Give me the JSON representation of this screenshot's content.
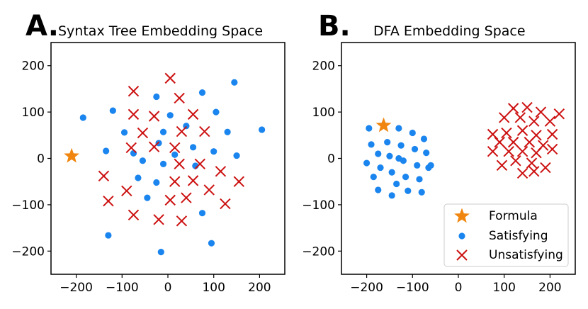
{
  "colors": {
    "formula": "#f0860f",
    "satisfying": "#1a85ee",
    "unsatisfying": "#cc1111",
    "axis": "#000000"
  },
  "chart_data": [
    {
      "type": "scatter",
      "panel_label": "A.",
      "title": "Syntax Tree Embedding Space",
      "xlim": [
        -255,
        255
      ],
      "ylim": [
        -250,
        250
      ],
      "xticks": [
        -200,
        -100,
        0,
        100,
        200
      ],
      "yticks": [
        -200,
        -100,
        0,
        100,
        200
      ],
      "grid": false,
      "legend": null,
      "series": [
        {
          "marker": "star",
          "points": [
            [
              -210,
              5
            ]
          ]
        },
        {
          "marker": "circle",
          "points": [
            [
              -185,
              88
            ],
            [
              -120,
              103
            ],
            [
              -135,
              16
            ],
            [
              -130,
              -166
            ],
            [
              -95,
              56
            ],
            [
              -75,
              11
            ],
            [
              -65,
              -42
            ],
            [
              -55,
              -5
            ],
            [
              -25,
              133
            ],
            [
              -20,
              33
            ],
            [
              -25,
              -52
            ],
            [
              -10,
              57
            ],
            [
              -10,
              -12
            ],
            [
              5,
              93
            ],
            [
              -15,
              -202
            ],
            [
              15,
              8
            ],
            [
              40,
              70
            ],
            [
              55,
              24
            ],
            [
              60,
              -16
            ],
            [
              75,
              142
            ],
            [
              105,
              100
            ],
            [
              100,
              15
            ],
            [
              75,
              -118
            ],
            [
              95,
              -183
            ],
            [
              130,
              57
            ],
            [
              145,
              164
            ],
            [
              150,
              6
            ],
            [
              205,
              62
            ],
            [
              -45,
              -85
            ]
          ]
        },
        {
          "marker": "x",
          "points": [
            [
              5,
              173
            ],
            [
              -75,
              145
            ],
            [
              -75,
              95
            ],
            [
              -30,
              91
            ],
            [
              -55,
              55
            ],
            [
              -80,
              23
            ],
            [
              -30,
              25
            ],
            [
              -140,
              -38
            ],
            [
              -130,
              -92
            ],
            [
              -90,
              -70
            ],
            [
              -75,
              -122
            ],
            [
              -20,
              -132
            ],
            [
              5,
              -90
            ],
            [
              25,
              130
            ],
            [
              55,
              95
            ],
            [
              30,
              58
            ],
            [
              80,
              58
            ],
            [
              15,
              23
            ],
            [
              25,
              -12
            ],
            [
              70,
              -12
            ],
            [
              15,
              -50
            ],
            [
              55,
              -48
            ],
            [
              115,
              -28
            ],
            [
              40,
              -85
            ],
            [
              90,
              -68
            ],
            [
              30,
              -135
            ],
            [
              125,
              -98
            ],
            [
              155,
              -50
            ]
          ]
        }
      ]
    },
    {
      "type": "scatter",
      "panel_label": "B.",
      "title": "DFA Embedding Space",
      "xlim": [
        -255,
        255
      ],
      "ylim": [
        -250,
        250
      ],
      "xticks": [
        -200,
        -100,
        0,
        100,
        200
      ],
      "yticks": [
        -200,
        -100,
        0,
        100,
        200
      ],
      "grid": false,
      "legend": "lower-right",
      "series": [
        {
          "name": "Formula",
          "marker": "star",
          "points": [
            [
              -163,
              71
            ]
          ]
        },
        {
          "name": "Satisfying",
          "marker": "circle",
          "points": [
            [
              -195,
              65
            ],
            [
              -190,
              30
            ],
            [
              -200,
              -10
            ],
            [
              -185,
              -40
            ],
            [
              -175,
              -68
            ],
            [
              -175,
              10
            ],
            [
              -170,
              -20
            ],
            [
              -155,
              35
            ],
            [
              -150,
              5
            ],
            [
              -145,
              -30
            ],
            [
              -135,
              -55
            ],
            [
              -130,
              65
            ],
            [
              -125,
              28
            ],
            [
              -120,
              -5
            ],
            [
              -115,
              -40
            ],
            [
              -110,
              -70
            ],
            [
              -100,
              55
            ],
            [
              -95,
              20
            ],
            [
              -90,
              -15
            ],
            [
              -85,
              -45
            ],
            [
              -80,
              -73
            ],
            [
              -145,
              -80
            ],
            [
              -75,
              42
            ],
            [
              -70,
              12
            ],
            [
              -65,
              -20
            ],
            [
              -60,
              -15
            ],
            [
              -130,
              0
            ]
          ]
        },
        {
          "name": "Unsatisfying",
          "marker": "x",
          "points": [
            [
              120,
              108
            ],
            [
              150,
              110
            ],
            [
              180,
              100
            ],
            [
              220,
              96
            ],
            [
              100,
              88
            ],
            [
              135,
              88
            ],
            [
              165,
              80
            ],
            [
              200,
              80
            ],
            [
              75,
              52
            ],
            [
              105,
              55
            ],
            [
              140,
              60
            ],
            [
              170,
              50
            ],
            [
              205,
              52
            ],
            [
              90,
              35
            ],
            [
              120,
              35
            ],
            [
              155,
              35
            ],
            [
              185,
              28
            ],
            [
              75,
              15
            ],
            [
              110,
              15
            ],
            [
              140,
              15
            ],
            [
              170,
              12
            ],
            [
              205,
              20
            ],
            [
              95,
              -15
            ],
            [
              125,
              -5
            ],
            [
              160,
              -10
            ],
            [
              190,
              -20
            ],
            [
              140,
              -32
            ],
            [
              165,
              -28
            ]
          ]
        }
      ]
    }
  ]
}
